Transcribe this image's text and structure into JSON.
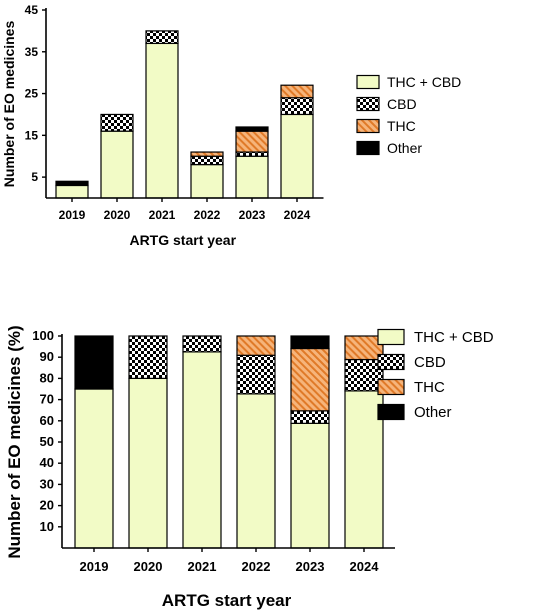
{
  "chart_data": [
    {
      "type": "bar",
      "stacked": true,
      "categories": [
        "2019",
        "2020",
        "2021",
        "2022",
        "2023",
        "2024"
      ],
      "xlabel": "ARTG start year",
      "ylabel": "Number of EO medicines",
      "ylim": [
        0,
        45
      ],
      "yticks": [
        "5",
        "15",
        "25",
        "35",
        "45"
      ],
      "legend_position": "right",
      "series": [
        {
          "name": "THC + CBD",
          "color": "#f2fbc6",
          "pattern": "solid",
          "values": [
            3,
            16,
            37,
            8,
            10,
            20
          ]
        },
        {
          "name": "CBD",
          "color": "#000000",
          "pattern": "checker",
          "values": [
            0,
            4,
            3,
            2,
            1,
            4
          ]
        },
        {
          "name": "THC",
          "color": "#f08a3c",
          "pattern": "hatch",
          "values": [
            0,
            0,
            0,
            1,
            5,
            3
          ]
        },
        {
          "name": "Other",
          "color": "#000000",
          "pattern": "solid",
          "values": [
            1,
            0,
            0,
            0,
            1,
            0
          ]
        }
      ]
    },
    {
      "type": "bar",
      "stacked": true,
      "categories": [
        "2019",
        "2020",
        "2021",
        "2022",
        "2023",
        "2024"
      ],
      "xlabel": "ARTG start year",
      "ylabel": "Number of EO medicines (%)",
      "ylim": [
        0,
        100
      ],
      "yticks": [
        "10",
        "20",
        "30",
        "40",
        "50",
        "60",
        "70",
        "80",
        "90",
        "100"
      ],
      "legend_position": "right",
      "series": [
        {
          "name": "THC + CBD",
          "color": "#f2fbc6",
          "pattern": "solid",
          "values": [
            75,
            80,
            92.5,
            72.7,
            58.8,
            74.1
          ]
        },
        {
          "name": "CBD",
          "color": "#000000",
          "pattern": "checker",
          "values": [
            0,
            20,
            7.5,
            18.2,
            5.9,
            14.8
          ]
        },
        {
          "name": "THC",
          "color": "#f08a3c",
          "pattern": "hatch",
          "values": [
            0,
            0,
            0,
            9.1,
            29.4,
            11.1
          ]
        },
        {
          "name": "Other",
          "color": "#000000",
          "pattern": "solid",
          "values": [
            25,
            0,
            0,
            0,
            5.9,
            0
          ]
        }
      ]
    }
  ]
}
